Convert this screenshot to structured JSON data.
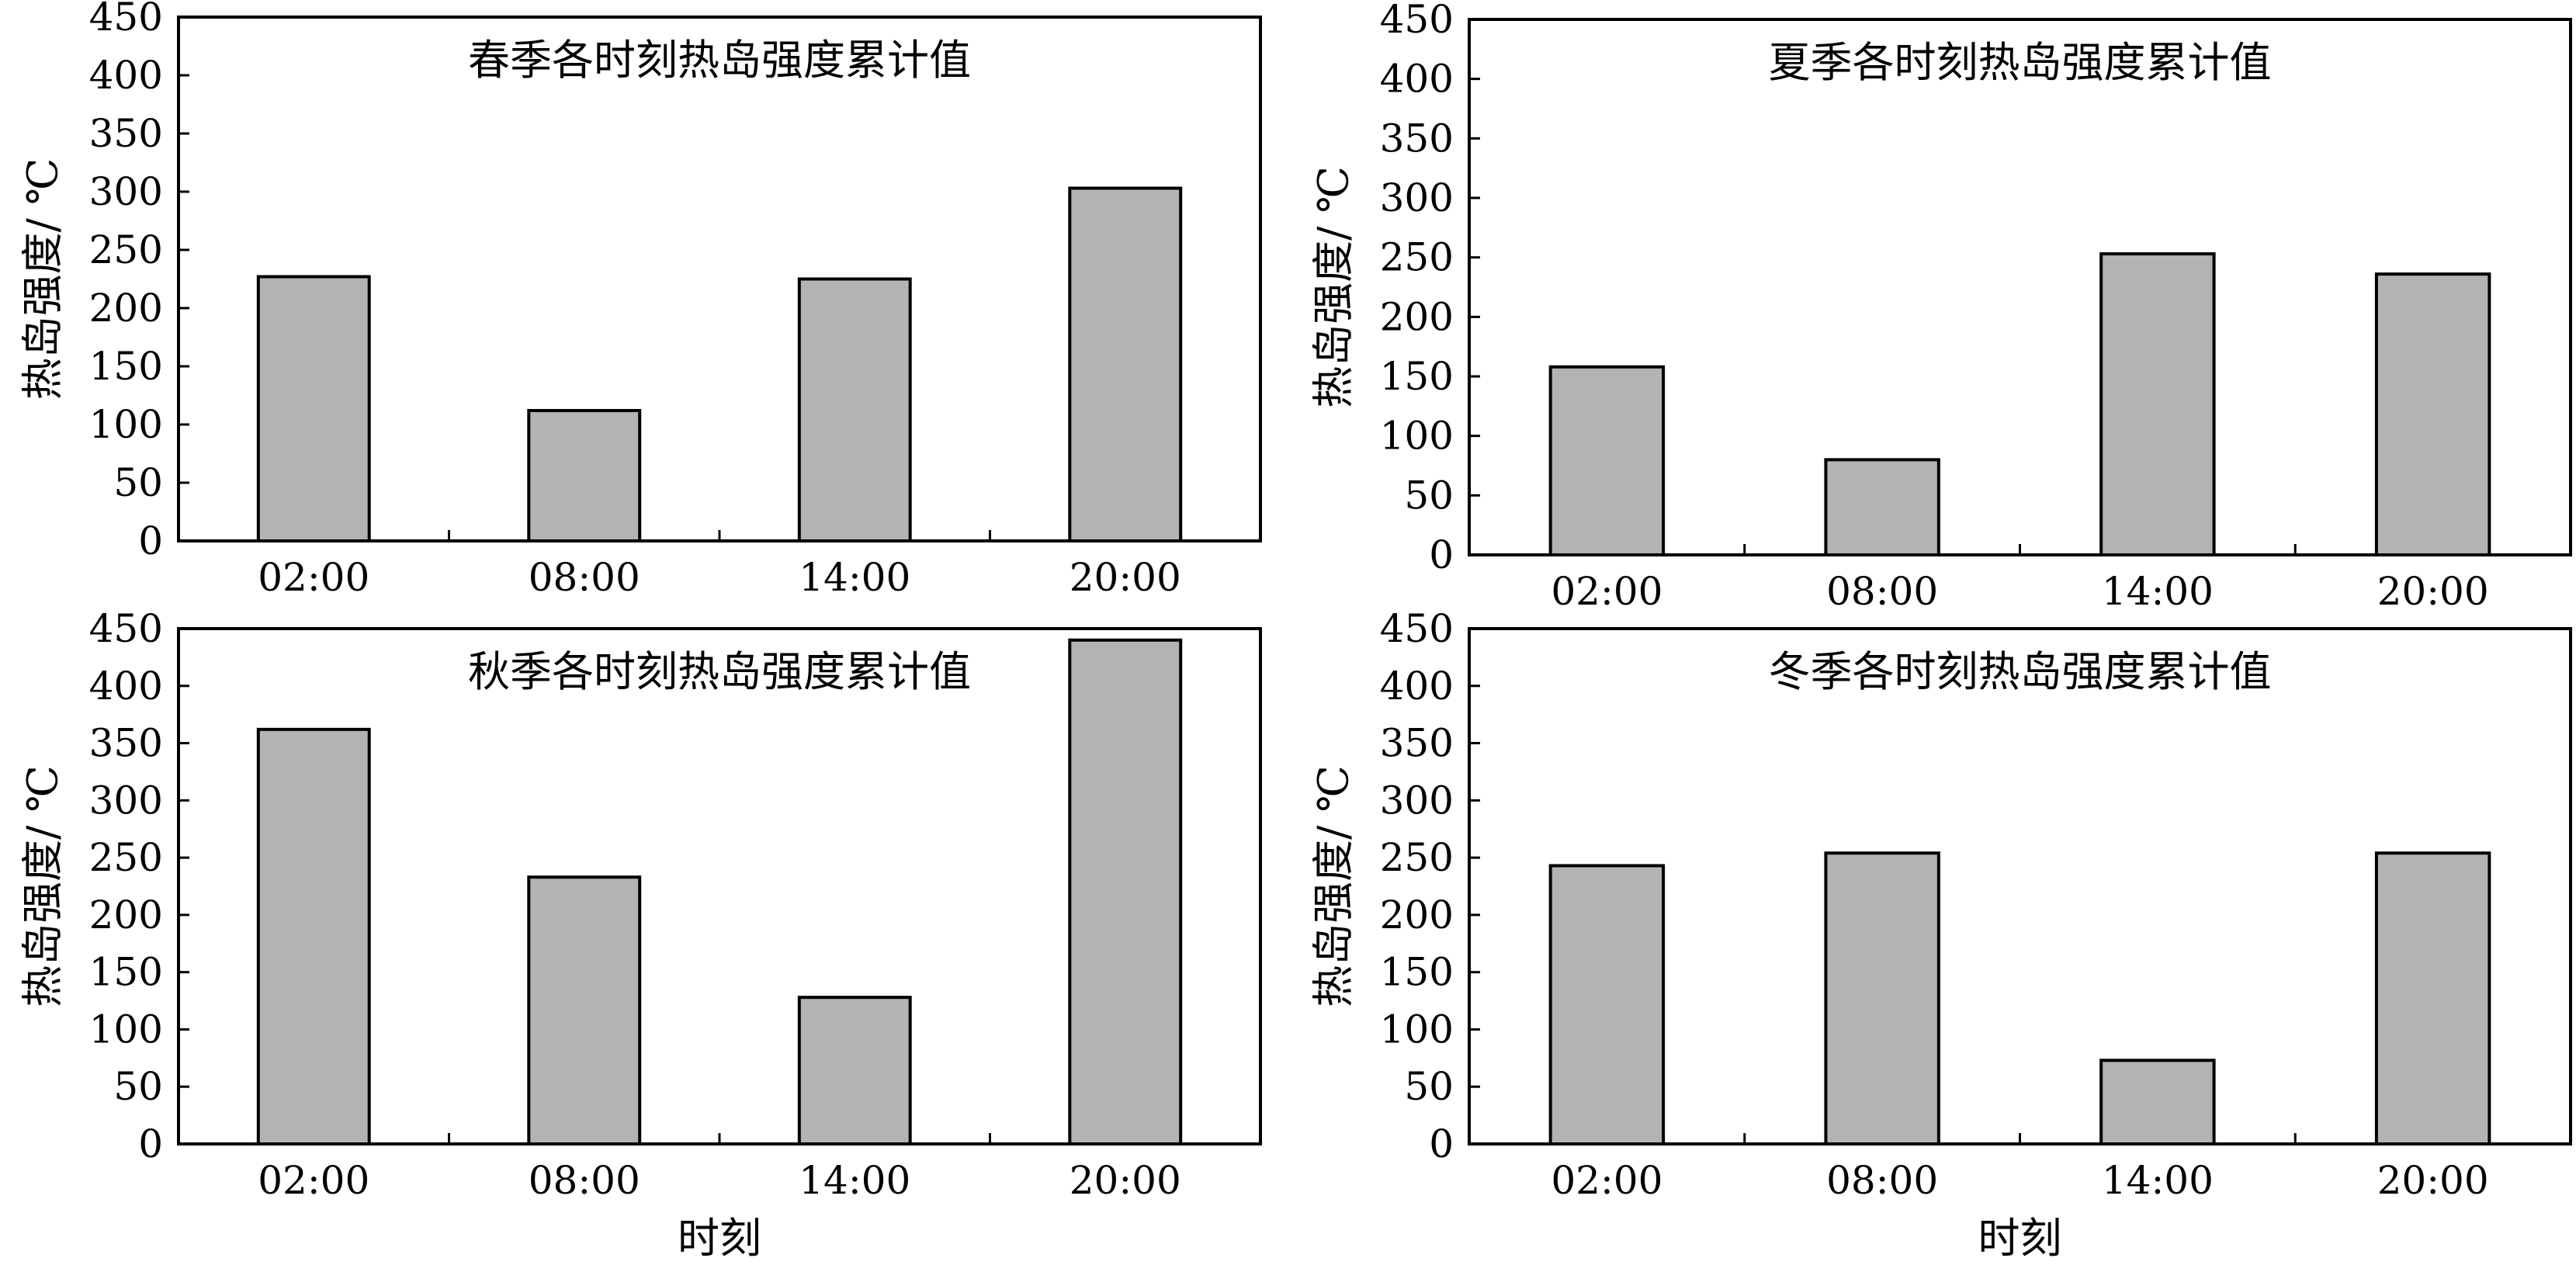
{
  "chart_data": [
    {
      "type": "bar",
      "title": "春季各时刻热岛强度累计值",
      "ylabel": "热岛强度/ ℃",
      "xlabel": "",
      "categories": [
        "02:00",
        "08:00",
        "14:00",
        "20:00"
      ],
      "values": [
        227,
        112,
        225,
        303
      ],
      "ylim": [
        0,
        450
      ],
      "yticks": [
        0,
        50,
        100,
        150,
        200,
        250,
        300,
        350,
        400,
        450
      ],
      "bar_color": "#b3b3b3",
      "grid": false
    },
    {
      "type": "bar",
      "title": "夏季各时刻热岛强度累计值",
      "ylabel": "热岛强度/ ℃",
      "xlabel": "",
      "categories": [
        "02:00",
        "08:00",
        "14:00",
        "20:00"
      ],
      "values": [
        158,
        80,
        253,
        236
      ],
      "ylim": [
        0,
        450
      ],
      "yticks": [
        0,
        50,
        100,
        150,
        200,
        250,
        300,
        350,
        400,
        450
      ],
      "bar_color": "#b3b3b3",
      "grid": false
    },
    {
      "type": "bar",
      "title": "秋季各时刻热岛强度累计值",
      "ylabel": "热岛强度/ ℃",
      "xlabel": "时刻",
      "categories": [
        "02:00",
        "08:00",
        "14:00",
        "20:00"
      ],
      "values": [
        362,
        233,
        128,
        440
      ],
      "ylim": [
        0,
        450
      ],
      "yticks": [
        0,
        50,
        100,
        150,
        200,
        250,
        300,
        350,
        400,
        450
      ],
      "bar_color": "#b3b3b3",
      "grid": false
    },
    {
      "type": "bar",
      "title": "冬季各时刻热岛强度累计值",
      "ylabel": "热岛强度/ ℃",
      "xlabel": "时刻",
      "categories": [
        "02:00",
        "08:00",
        "14:00",
        "20:00"
      ],
      "values": [
        243,
        254,
        73,
        254
      ],
      "ylim": [
        0,
        450
      ],
      "yticks": [
        0,
        50,
        100,
        150,
        200,
        250,
        300,
        350,
        400,
        450
      ],
      "bar_color": "#b3b3b3",
      "grid": false
    }
  ]
}
